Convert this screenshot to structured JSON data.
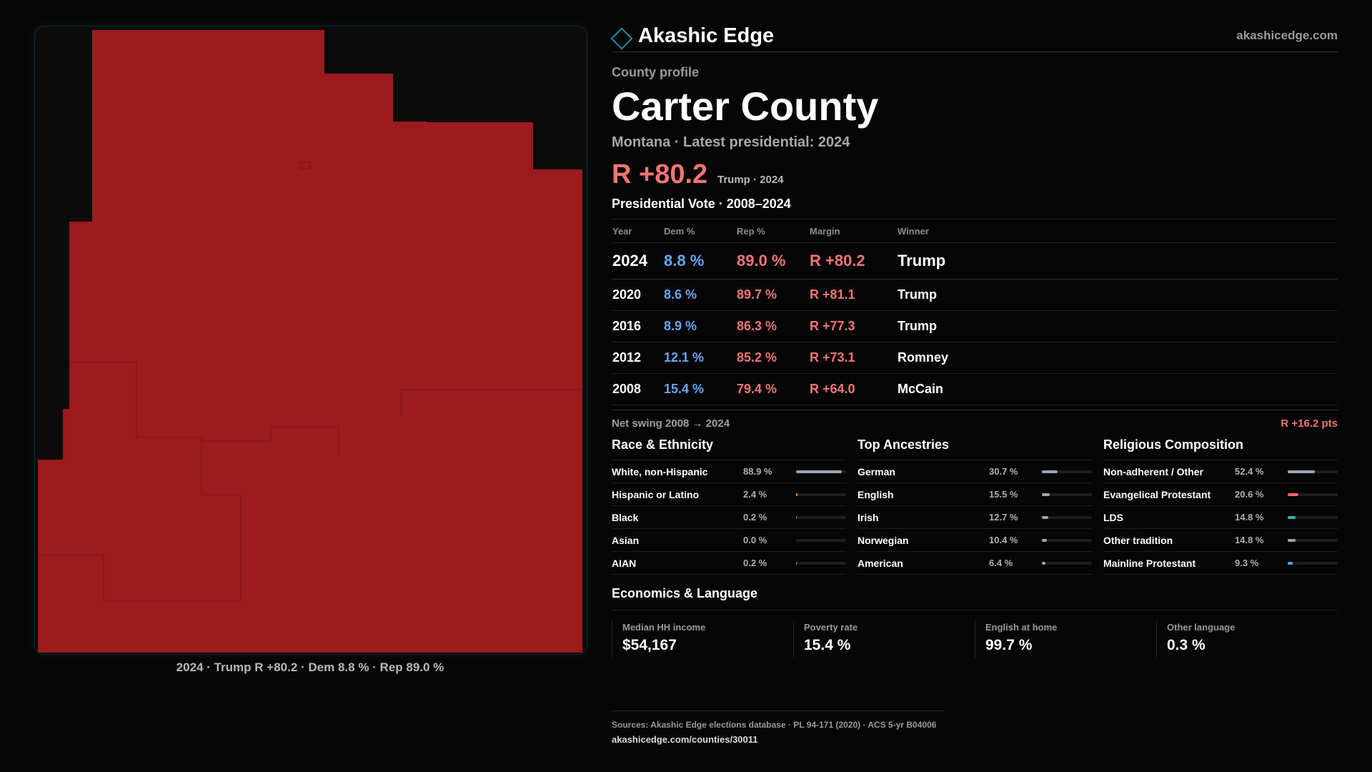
{
  "brand": {
    "name": "Akashic Edge",
    "url": "akashicedge.com",
    "icon": "diamond-icon",
    "accent": "#1a8ea8"
  },
  "profile": {
    "eyebrow": "County profile",
    "county": "Carter County",
    "subtitle": "Montana · Latest presidential: 2024",
    "margin": "R +80.2",
    "margin_note": "Trump · 2024"
  },
  "map": {
    "fill_color": "#9b1b1e",
    "caption": "2024 · Trump R +80.2 · Dem 8.8 % · Rep 89.0 %"
  },
  "vote": {
    "title": "Presidential Vote · 2008–2024",
    "headers": {
      "year": "Year",
      "dem": "Dem %",
      "rep": "Rep %",
      "margin": "Margin",
      "winner": "Winner"
    },
    "rows": [
      {
        "year": "2024",
        "dem": "8.8 %",
        "rep": "89.0 %",
        "margin": "R +80.2",
        "winner": "Trump"
      },
      {
        "year": "2020",
        "dem": "8.6 %",
        "rep": "89.7 %",
        "margin": "R +81.1",
        "winner": "Trump"
      },
      {
        "year": "2016",
        "dem": "8.9 %",
        "rep": "86.3 %",
        "margin": "R +77.3",
        "winner": "Trump"
      },
      {
        "year": "2012",
        "dem": "12.1 %",
        "rep": "85.2 %",
        "margin": "R +73.1",
        "winner": "Romney"
      },
      {
        "year": "2008",
        "dem": "15.4 %",
        "rep": "79.4 %",
        "margin": "R +64.0",
        "winner": "McCain"
      }
    ],
    "swing_label": "Net swing 2008 → 2024",
    "swing_value": "R +16.2 pts"
  },
  "race": {
    "title": "Race & Ethnicity",
    "items": [
      {
        "label": "White, non-Hispanic",
        "value": "88.9 %",
        "pct": 88.9,
        "color": "#9aa6b8"
      },
      {
        "label": "Hispanic or Latino",
        "value": "2.4 %",
        "pct": 2.4,
        "color": "#e8913a"
      },
      {
        "label": "Black",
        "value": "0.2 %",
        "pct": 0.2,
        "color": "#888888"
      },
      {
        "label": "Asian",
        "value": "0.0 %",
        "pct": 0.0,
        "color": "#888888"
      },
      {
        "label": "AIAN",
        "value": "0.2 %",
        "pct": 0.2,
        "color": "#888888"
      }
    ]
  },
  "ancestry": {
    "title": "Top Ancestries",
    "items": [
      {
        "label": "German",
        "value": "30.7 %",
        "pct": 30.7,
        "color": "#9aa6b8"
      },
      {
        "label": "English",
        "value": "15.5 %",
        "pct": 15.5,
        "color": "#9aa6b8"
      },
      {
        "label": "Irish",
        "value": "12.7 %",
        "pct": 12.7,
        "color": "#9aa6b8"
      },
      {
        "label": "Norwegian",
        "value": "10.4 %",
        "pct": 10.4,
        "color": "#9aa6b8"
      },
      {
        "label": "American",
        "value": "6.4 %",
        "pct": 6.4,
        "color": "#9aa6b8"
      }
    ]
  },
  "religion": {
    "title": "Religious Composition",
    "items": [
      {
        "label": "Non-adherent / Other",
        "value": "52.4 %",
        "pct": 52.4,
        "color": "#9aa6b8"
      },
      {
        "label": "Evangelical Protestant",
        "value": "20.6 %",
        "pct": 20.6,
        "color": "#f06470"
      },
      {
        "label": "LDS",
        "value": "14.8 %",
        "pct": 14.8,
        "color": "#2bbfb0"
      },
      {
        "label": "Other tradition",
        "value": "14.8 %",
        "pct": 14.8,
        "color": "#9aa6b8"
      },
      {
        "label": "Mainline Protestant",
        "value": "9.3 %",
        "pct": 9.3,
        "color": "#5a9ef0"
      }
    ]
  },
  "economics": {
    "title": "Economics & Language",
    "cards": [
      {
        "label": "Median HH income",
        "value": "$54,167"
      },
      {
        "label": "Poverty rate",
        "value": "15.4 %"
      },
      {
        "label": "English at home",
        "value": "99.7 %"
      },
      {
        "label": "Other language",
        "value": "0.3 %"
      }
    ]
  },
  "sources": {
    "text": "Sources: Akashic Edge elections database · PL 94-171 (2020) · ACS 5-yr B04006",
    "url": "akashicedge.com/counties/30011"
  }
}
